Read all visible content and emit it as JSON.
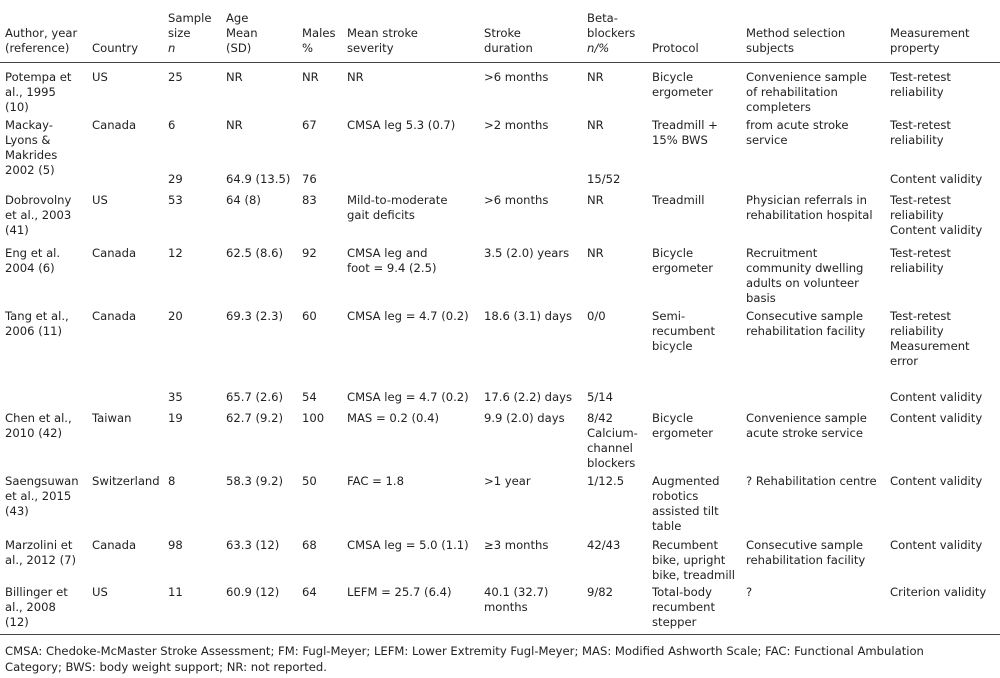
{
  "table": {
    "header": [
      [
        "Author, year",
        "(reference)"
      ],
      [
        "Country"
      ],
      [
        "Sample",
        "size",
        "n"
      ],
      [
        "Age",
        "Mean",
        "(SD)"
      ],
      [
        "Males",
        "%"
      ],
      [
        "Mean stroke",
        "severity"
      ],
      [
        "Stroke",
        "duration"
      ],
      [
        "Beta-",
        "blockers",
        "n/%"
      ],
      [
        "Protocol"
      ],
      [
        "Method selection",
        "subjects"
      ],
      [
        "Measurement",
        "property"
      ]
    ],
    "rows": [
      [
        [
          "Potempa et",
          "al., 1995",
          "(10)"
        ],
        [
          "US"
        ],
        [
          "25"
        ],
        [
          "NR"
        ],
        [
          "NR"
        ],
        [
          "NR"
        ],
        [
          ">6 months"
        ],
        [
          "NR"
        ],
        [
          "Bicycle",
          "ergometer"
        ],
        [
          "Convenience sample",
          "of rehabilitation",
          "completers"
        ],
        [
          "Test-retest",
          "reliability"
        ]
      ],
      [
        [
          "Mackay-",
          "Lyons &",
          "Makrides",
          "2002 (5)"
        ],
        [
          "Canada"
        ],
        [
          "6"
        ],
        [
          "NR"
        ],
        [
          "67"
        ],
        [
          "CMSA leg 5.3 (0.7)"
        ],
        [
          ">2 months"
        ],
        [
          "NR"
        ],
        [
          "Treadmill +",
          "15% BWS"
        ],
        [
          "from acute stroke",
          "service"
        ],
        [
          "Test-retest",
          "reliability"
        ]
      ],
      [
        [],
        [],
        [
          "29"
        ],
        [
          "64.9 (13.5)"
        ],
        [
          "76"
        ],
        [],
        [],
        [
          "15/52"
        ],
        [],
        [],
        [
          "Content validity"
        ]
      ],
      [
        [
          "Dobrovolny",
          "et al., 2003",
          "(41)"
        ],
        [
          "US"
        ],
        [
          "53"
        ],
        [
          "64 (8)"
        ],
        [
          "83"
        ],
        [
          "Mild-to-moderate",
          "gait deficits"
        ],
        [
          ">6 months"
        ],
        [
          "NR"
        ],
        [
          "Treadmill"
        ],
        [
          "Physician referrals in",
          "rehabilitation hospital"
        ],
        [
          "Test-retest",
          "reliability",
          "Content validity"
        ]
      ],
      [
        [
          "Eng et al.",
          "2004 (6)"
        ],
        [
          "Canada"
        ],
        [
          "12"
        ],
        [
          "62.5 (8.6)"
        ],
        [
          "92"
        ],
        [
          "CMSA leg and",
          "foot = 9.4 (2.5)"
        ],
        [
          "3.5 (2.0) years"
        ],
        [
          "NR"
        ],
        [
          "Bicycle",
          "ergometer"
        ],
        [
          "Recruitment",
          "community dwelling",
          "adults on volunteer",
          "basis"
        ],
        [
          "Test-retest",
          "reliability"
        ]
      ],
      [
        [
          "Tang et al.,",
          "2006 (11)"
        ],
        [
          "Canada"
        ],
        [
          "20"
        ],
        [
          "69.3 (2.3)"
        ],
        [
          "60"
        ],
        [
          "CMSA leg = 4.7 (0.2)"
        ],
        [
          "18.6 (3.1) days"
        ],
        [
          "0/0"
        ],
        [
          "Semi-",
          "recumbent",
          "bicycle"
        ],
        [
          "Consecutive sample",
          "rehabilitation facility"
        ],
        [
          "Test-retest",
          "reliability",
          "Measurement",
          "error"
        ]
      ],
      [
        [],
        [],
        [
          "35"
        ],
        [
          "65.7 (2.6)"
        ],
        [
          "54"
        ],
        [
          "CMSA leg = 4.7 (0.2)"
        ],
        [
          "17.6 (2.2) days"
        ],
        [
          "5/14"
        ],
        [],
        [],
        [
          "Content validity"
        ]
      ],
      [
        [
          "Chen et al.,",
          "2010 (42)"
        ],
        [
          "Taiwan"
        ],
        [
          "19"
        ],
        [
          "62.7 (9.2)"
        ],
        [
          "100"
        ],
        [
          "MAS = 0.2 (0.4)"
        ],
        [
          "9.9 (2.0) days"
        ],
        [
          "8/42",
          "Calcium-",
          "channel",
          "blockers"
        ],
        [
          "Bicycle",
          "ergometer"
        ],
        [
          "Convenience sample",
          "acute stroke service"
        ],
        [
          "Content validity"
        ]
      ],
      [
        [
          "Saengsuwan",
          "et al., 2015",
          "(43)"
        ],
        [
          "Switzerland"
        ],
        [
          "8"
        ],
        [
          "58.3 (9.2)"
        ],
        [
          "50"
        ],
        [
          "FAC = 1.8"
        ],
        [
          ">1 year"
        ],
        [
          "1/12.5"
        ],
        [
          "Augmented",
          "robotics",
          "assisted tilt",
          "table"
        ],
        [
          "? Rehabilitation centre"
        ],
        [
          "Content validity"
        ]
      ],
      [
        [
          "Marzolini et",
          "al., 2012 (7)"
        ],
        [
          "Canada"
        ],
        [
          "98"
        ],
        [
          "63.3 (12)"
        ],
        [
          "68"
        ],
        [
          "CMSA leg = 5.0 (1.1)"
        ],
        [
          "≥3 months"
        ],
        [
          "42/43"
        ],
        [
          "Recumbent",
          "bike, upright",
          "bike, treadmill"
        ],
        [
          "Consecutive sample",
          "rehabilitation facility"
        ],
        [
          "Content validity"
        ]
      ],
      [
        [
          "Billinger et",
          "al., 2008",
          "(12)"
        ],
        [
          "US"
        ],
        [
          "11"
        ],
        [
          "60.9 (12)"
        ],
        [
          "64"
        ],
        [
          "LEFM = 25.7 (6.4)"
        ],
        [
          "40.1 (32.7)",
          "months"
        ],
        [
          "9/82"
        ],
        [
          "Total-body",
          "recumbent",
          "stepper"
        ],
        [
          "?"
        ],
        [
          "Criterion validity"
        ]
      ]
    ]
  },
  "footnote": [
    "CMSA: Chedoke-McMaster Stroke Assessment; FM: Fugl-Meyer; LEFM: Lower Extremity Fugl-Meyer; MAS: Modified Ashworth Scale; FAC: Functional Ambulation",
    "Category; BWS: body weight support; NR: not reported."
  ]
}
